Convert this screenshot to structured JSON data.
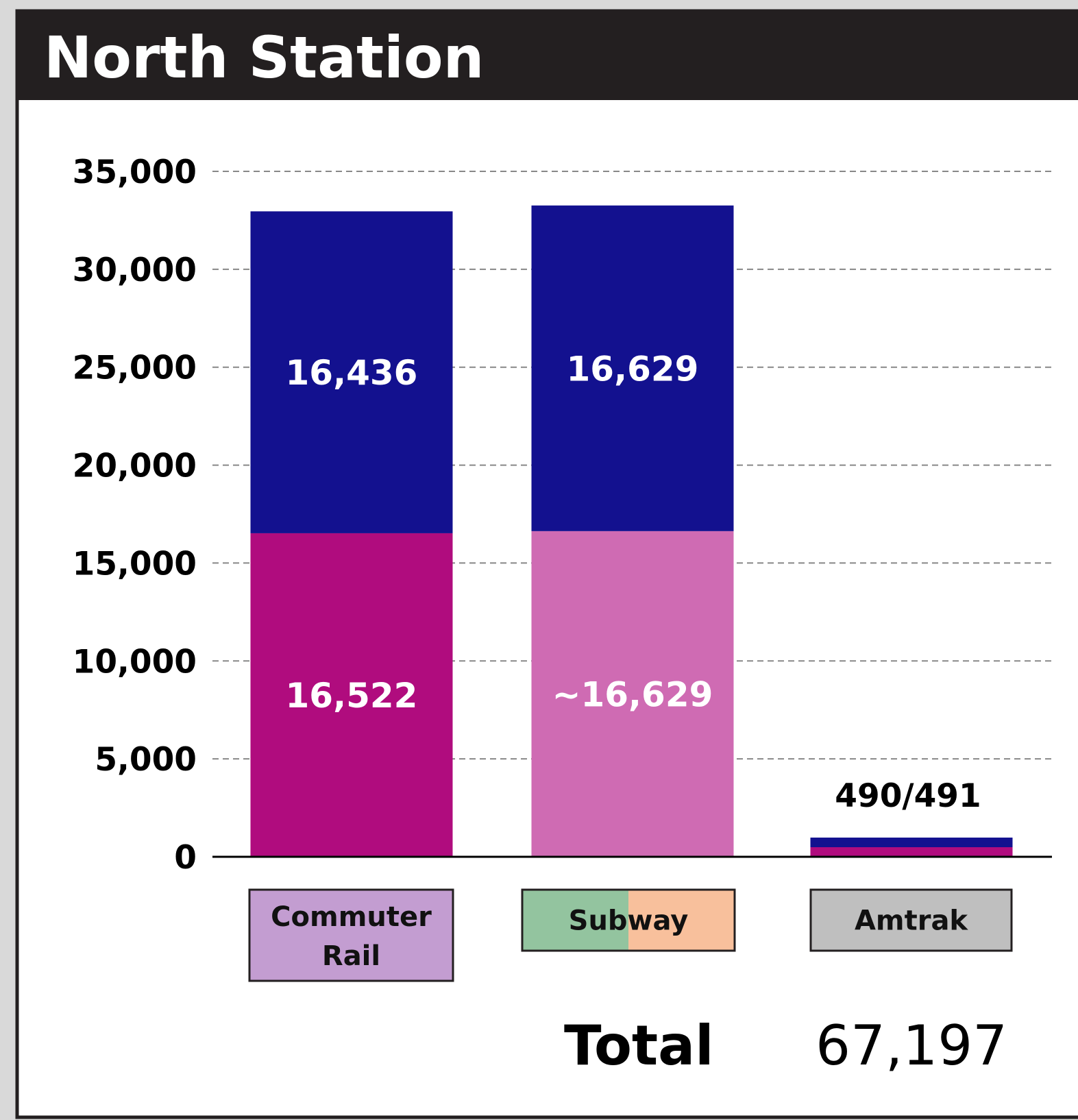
{
  "chart_data": {
    "type": "stacked_bar",
    "title": "North Station",
    "categories": [
      "Commuter Rail",
      "Subway",
      "Amtrak"
    ],
    "category_colors": [
      [
        "#c39dd1"
      ],
      [
        "#93c49f",
        "#f8c09c"
      ],
      [
        "#bfbfbf"
      ]
    ],
    "series": [
      {
        "colors": [
          "#b00c7e",
          "#cf6bb3",
          "#b00c7e"
        ],
        "values": [
          16522,
          16629,
          490
        ],
        "value_labels": [
          "16,522",
          "~16,629",
          null
        ]
      },
      {
        "colors": [
          "#13118f",
          "#13118f",
          "#13118f"
        ],
        "values": [
          16436,
          16629,
          491
        ],
        "value_labels": [
          "16,436",
          "16,629",
          null
        ]
      }
    ],
    "annotations": [
      {
        "category": 2,
        "text": "490/491"
      }
    ],
    "ylim": [
      0,
      35000
    ],
    "yticks": [
      0,
      {
        "value": 5000,
        "label": "5,000"
      },
      {
        "value": 10000,
        "label": "10,000"
      },
      {
        "value": 15000,
        "label": "15,000"
      },
      {
        "value": 20000,
        "label": "20,000"
      },
      {
        "value": 25000,
        "label": "25,000"
      },
      {
        "value": 30000,
        "label": "30,000"
      },
      {
        "value": 35000,
        "label": "35,000"
      }
    ],
    "grid": true,
    "total": {
      "label": "Total",
      "value": 67197,
      "value_label": "67,197"
    }
  }
}
